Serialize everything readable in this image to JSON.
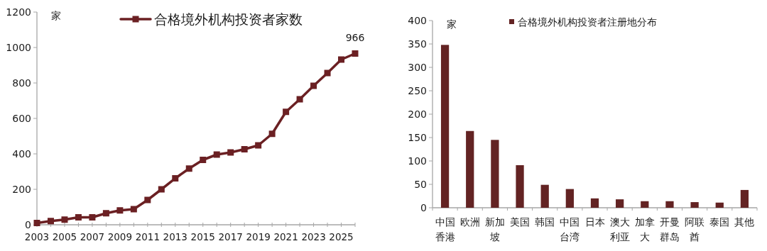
{
  "chart_data": [
    {
      "type": "line",
      "ylabel": "家",
      "legend": "top",
      "marker": "square",
      "x": [
        2003,
        2004,
        2005,
        2006,
        2007,
        2008,
        2009,
        2010,
        2011,
        2012,
        2013,
        2014,
        2015,
        2016,
        2017,
        2018,
        2019,
        2020,
        2021,
        2022,
        2023,
        2024,
        2025,
        2026
      ],
      "xlim": [
        2003,
        2026
      ],
      "xticks": [
        2003,
        {
          "value": 2004,
          "label": null
        },
        2005,
        {
          "value": 2006,
          "label": null
        },
        2007,
        {
          "value": 2008,
          "label": null
        },
        2009,
        {
          "value": 2010,
          "label": null
        },
        2011,
        {
          "value": 2012,
          "label": null
        },
        2013,
        {
          "value": 2014,
          "label": null
        },
        2015,
        {
          "value": 2016,
          "label": null
        },
        2017,
        {
          "value": 2018,
          "label": null
        },
        2019,
        {
          "value": 2020,
          "label": null
        },
        2021,
        {
          "value": 2022,
          "label": null
        },
        2023,
        {
          "value": 2024,
          "label": null
        },
        2025,
        {
          "value": 2026,
          "label": null
        }
      ],
      "ylim": [
        0,
        1200
      ],
      "yticks": [
        0,
        200,
        400,
        600,
        800,
        1000,
        1200
      ],
      "series": [
        {
          "name": "合格境外机构投资者家数",
          "color": "#6b2023",
          "values": [
            10,
            21,
            29,
            42,
            42,
            65,
            81,
            88,
            140,
            200,
            262,
            317,
            366,
            396,
            408,
            426,
            448,
            513,
            637,
            708,
            784,
            856,
            932,
            966
          ],
          "value_labels": [
            null,
            null,
            null,
            null,
            null,
            null,
            null,
            null,
            null,
            null,
            null,
            null,
            null,
            null,
            null,
            null,
            null,
            null,
            null,
            null,
            null,
            null,
            null,
            "966"
          ]
        }
      ]
    },
    {
      "type": "bar",
      "ylabel": "家",
      "legend": "top",
      "categories": [
        "中国香港",
        "欧洲",
        "新加坡",
        "美国",
        "韩国",
        "中国台湾",
        "日本",
        "澳大利亚",
        "加拿大",
        "开曼群岛",
        "阿联酋",
        "泰国",
        "其他"
      ],
      "ylim": [
        0,
        400
      ],
      "yticks": [
        0,
        50,
        100,
        150,
        200,
        250,
        300,
        350,
        400
      ],
      "series": [
        {
          "name": "合格境外机构投资者注册地分布",
          "color": "#632323",
          "values": [
            348,
            164,
            145,
            91,
            49,
            40,
            20,
            18,
            14,
            14,
            12,
            11,
            38
          ]
        }
      ]
    }
  ]
}
